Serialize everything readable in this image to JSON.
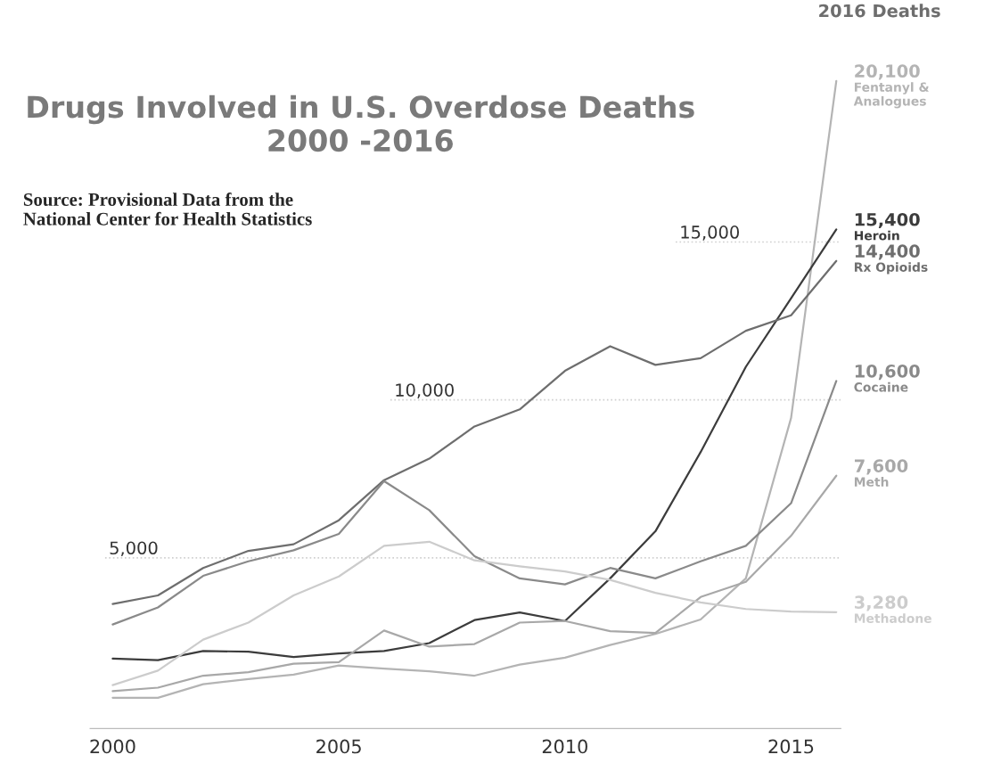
{
  "chart_data": {
    "type": "line",
    "title": "Drugs Involved in U.S. Overdose Deaths\n2000 -2016",
    "annotations": [
      "Source: Provisional Data from the\nNational Center for Health Statistics",
      "2016 Deaths"
    ],
    "x": [
      2000,
      2001,
      2002,
      2003,
      2004,
      2005,
      2006,
      2007,
      2008,
      2009,
      2010,
      2011,
      2012,
      2013,
      2014,
      2015,
      2016
    ],
    "series": [
      {
        "name": "Fentanyl & Analogues",
        "color": "#b4b4b4",
        "values": [
          570,
          570,
          1000,
          1160,
          1300,
          1590,
          1490,
          1410,
          1270,
          1620,
          1840,
          2240,
          2590,
          3050,
          4350,
          9430,
          20100
        ],
        "value_labels": [
          null,
          null,
          null,
          null,
          null,
          null,
          null,
          null,
          null,
          null,
          null,
          null,
          null,
          null,
          null,
          null,
          "20,100"
        ]
      },
      {
        "name": "Heroin",
        "color": "#3c3c3c",
        "values": [
          1810,
          1760,
          2050,
          2030,
          1860,
          1970,
          2050,
          2300,
          3030,
          3270,
          3000,
          4350,
          5840,
          8350,
          11050,
          13220,
          15400
        ],
        "value_labels": [
          null,
          null,
          null,
          null,
          null,
          null,
          null,
          null,
          null,
          null,
          null,
          null,
          null,
          null,
          null,
          null,
          "15,400"
        ]
      },
      {
        "name": "Rx Opioids",
        "color": "#6e6e6e",
        "values": [
          3540,
          3810,
          4680,
          5220,
          5430,
          6190,
          7460,
          8140,
          9160,
          9700,
          10920,
          11700,
          11110,
          11320,
          12190,
          12680,
          14400
        ],
        "value_labels": [
          null,
          null,
          null,
          null,
          null,
          null,
          null,
          null,
          null,
          null,
          null,
          null,
          null,
          null,
          null,
          null,
          "14,400"
        ]
      },
      {
        "name": "Cocaine",
        "color": "#8a8a8a",
        "values": [
          2890,
          3430,
          4430,
          4890,
          5240,
          5760,
          7430,
          6510,
          5050,
          4350,
          4160,
          4680,
          4350,
          4890,
          5380,
          6730,
          10600
        ],
        "value_labels": [
          null,
          null,
          null,
          null,
          null,
          null,
          null,
          null,
          null,
          null,
          null,
          null,
          null,
          null,
          null,
          null,
          "10,600"
        ]
      },
      {
        "name": "Meth",
        "color": "#a8a8a8",
        "values": [
          780,
          890,
          1270,
          1380,
          1650,
          1700,
          2700,
          2190,
          2270,
          2950,
          3000,
          2680,
          2620,
          3760,
          4240,
          5700,
          7600
        ],
        "value_labels": [
          null,
          null,
          null,
          null,
          null,
          null,
          null,
          null,
          null,
          null,
          null,
          null,
          null,
          null,
          null,
          null,
          "7,600"
        ]
      },
      {
        "name": "Methadone",
        "color": "#cccccc",
        "values": [
          970,
          1430,
          2410,
          2950,
          3810,
          4410,
          5380,
          5510,
          4920,
          4730,
          4570,
          4300,
          3890,
          3590,
          3380,
          3300,
          3280
        ],
        "value_labels": [
          null,
          null,
          null,
          null,
          null,
          null,
          null,
          null,
          null,
          null,
          null,
          null,
          null,
          null,
          null,
          null,
          "3,280"
        ]
      }
    ],
    "xlim": [
      1999.5,
      2016.1
    ],
    "xticks": [
      2000,
      2005,
      2010,
      2015
    ],
    "tick_labels": "x",
    "ref_lines": [
      {
        "axis": "y",
        "value": 5000,
        "label": "5,000",
        "color": "#d0d0d0",
        "line_style": "dotted"
      },
      {
        "axis": "y",
        "value": 10000,
        "label": "10,000",
        "color": "#d0d0d0",
        "line_style": "dotted"
      },
      {
        "axis": "y",
        "value": 15000,
        "label": "15,000",
        "color": "#d0d0d0",
        "line_style": "dotted"
      }
    ],
    "grid": false,
    "legend": false,
    "marker": "none",
    "line_style": "solid"
  }
}
